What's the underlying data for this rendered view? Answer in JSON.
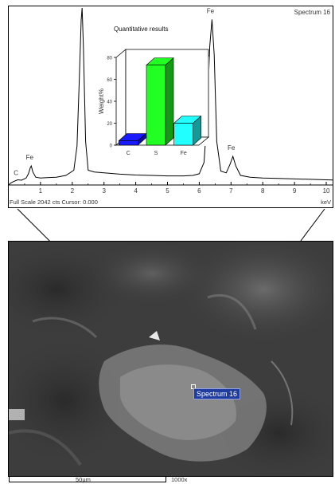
{
  "spectrum": {
    "name": "Spectrum 16",
    "footer_left": "Full Scale 2042 cts Cursor: 0.000",
    "footer_right": "keV",
    "x_ticks": [
      "1",
      "2",
      "3",
      "4",
      "5",
      "6",
      "7",
      "8",
      "9",
      "10"
    ],
    "peak_labels": [
      "C",
      "Fe",
      "Fe",
      "Fe"
    ]
  },
  "inset": {
    "title": "Quantitative results"
  },
  "sem": {
    "scale_text": "50µm",
    "magnification": "1000x",
    "spectrum_label": "Spectrum 16"
  },
  "chart_data": [
    {
      "type": "line",
      "title": "Spectrum 16",
      "xlabel": "keV",
      "ylabel": "",
      "xlim": [
        0,
        10.2
      ],
      "ylim": [
        0,
        2042
      ],
      "x_ticks": [
        1,
        2,
        3,
        4,
        5,
        6,
        7,
        8,
        9,
        10
      ],
      "peaks": [
        {
          "label": "C",
          "x": 0.28,
          "y": 60
        },
        {
          "label": "Fe",
          "x": 0.71,
          "y": 220
        },
        {
          "label": "",
          "x": 2.31,
          "y": 2042
        },
        {
          "label": "Fe",
          "x": 6.4,
          "y": 1910
        },
        {
          "label": "Fe",
          "x": 7.06,
          "y": 330
        }
      ],
      "series": [
        {
          "values": [
            [
              0.0,
              0
            ],
            [
              0.05,
              20
            ],
            [
              0.15,
              40
            ],
            [
              0.28,
              60
            ],
            [
              0.4,
              55
            ],
            [
              0.55,
              80
            ],
            [
              0.62,
              130
            ],
            [
              0.68,
              200
            ],
            [
              0.71,
              220
            ],
            [
              0.76,
              150
            ],
            [
              0.85,
              90
            ],
            [
              1.0,
              80
            ],
            [
              1.2,
              85
            ],
            [
              1.5,
              90
            ],
            [
              1.8,
              110
            ],
            [
              2.05,
              170
            ],
            [
              2.15,
              450
            ],
            [
              2.22,
              1200
            ],
            [
              2.28,
              1900
            ],
            [
              2.31,
              2042
            ],
            [
              2.35,
              1600
            ],
            [
              2.42,
              500
            ],
            [
              2.5,
              170
            ],
            [
              2.7,
              150
            ],
            [
              3.0,
              140
            ],
            [
              3.5,
              125
            ],
            [
              4.0,
              115
            ],
            [
              4.5,
              110
            ],
            [
              5.0,
              105
            ],
            [
              5.5,
              105
            ],
            [
              5.8,
              110
            ],
            [
              6.0,
              130
            ],
            [
              6.15,
              260
            ],
            [
              6.25,
              800
            ],
            [
              6.33,
              1600
            ],
            [
              6.4,
              1910
            ],
            [
              6.47,
              1500
            ],
            [
              6.55,
              500
            ],
            [
              6.68,
              160
            ],
            [
              6.85,
              140
            ],
            [
              6.97,
              240
            ],
            [
              7.06,
              330
            ],
            [
              7.15,
              220
            ],
            [
              7.3,
              110
            ],
            [
              7.6,
              90
            ],
            [
              8.0,
              80
            ],
            [
              8.5,
              75
            ],
            [
              9.0,
              70
            ],
            [
              9.5,
              65
            ],
            [
              10.0,
              60
            ],
            [
              10.2,
              58
            ]
          ]
        }
      ]
    },
    {
      "type": "bar",
      "title": "Quantitative results",
      "ylabel": "Weight%",
      "categories": [
        "C",
        "S",
        "Fe"
      ],
      "values": [
        4,
        73,
        20
      ],
      "ylim": [
        0,
        80
      ],
      "y_ticks": [
        0,
        20,
        40,
        60,
        80
      ],
      "colors": [
        "#1a1aff",
        "#22ff22",
        "#22ffff"
      ]
    }
  ]
}
